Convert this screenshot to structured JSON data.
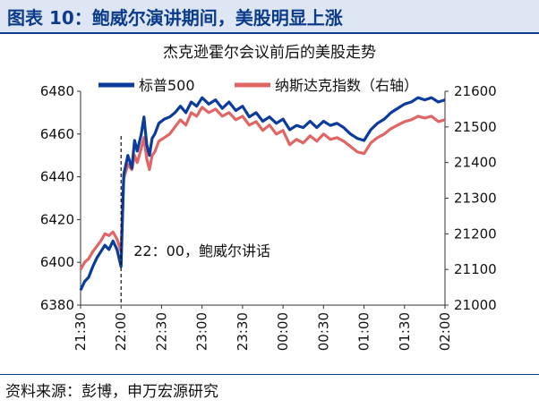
{
  "figure_title": "图表 10：鲍威尔演讲期间，美股明显上涨",
  "source_note": "资料来源：彭博，申万宏源研究",
  "chart_data": {
    "type": "line",
    "title": "杰克逊霍尔会议前后的美股走势",
    "annotation": "22：00，鲍威尔讲话",
    "annotation_x": "22:00",
    "x_ticks": [
      "21:30",
      "22:00",
      "22:30",
      "23:00",
      "23:30",
      "00:00",
      "00:30",
      "01:00",
      "01:30",
      "02:00"
    ],
    "y_left": {
      "min": 6380,
      "max": 6480,
      "ticks": [
        6380,
        6400,
        6420,
        6440,
        6460,
        6480
      ]
    },
    "y_right": {
      "min": 21000,
      "max": 21600,
      "ticks": [
        21000,
        21100,
        21200,
        21300,
        21400,
        21500,
        21600
      ]
    },
    "legend_position": "top",
    "series": [
      {
        "name": "标普500",
        "axis": "left",
        "color": "#0b3c9c",
        "points": [
          [
            "21:30",
            6387
          ],
          [
            "21:33",
            6391
          ],
          [
            "21:36",
            6393
          ],
          [
            "21:39",
            6398
          ],
          [
            "21:42",
            6402
          ],
          [
            "21:45",
            6405
          ],
          [
            "21:48",
            6408
          ],
          [
            "21:51",
            6406
          ],
          [
            "21:54",
            6410
          ],
          [
            "21:57",
            6406
          ],
          [
            "22:00",
            6398
          ],
          [
            "22:02",
            6441
          ],
          [
            "22:05",
            6450
          ],
          [
            "22:08",
            6444
          ],
          [
            "22:10",
            6457
          ],
          [
            "22:12",
            6452
          ],
          [
            "22:15",
            6460
          ],
          [
            "22:17",
            6468
          ],
          [
            "22:19",
            6455
          ],
          [
            "22:21",
            6450
          ],
          [
            "22:23",
            6458
          ],
          [
            "22:25",
            6460
          ],
          [
            "22:28",
            6465
          ],
          [
            "22:32",
            6467
          ],
          [
            "22:36",
            6468
          ],
          [
            "22:40",
            6470
          ],
          [
            "22:44",
            6473
          ],
          [
            "22:48",
            6470
          ],
          [
            "22:52",
            6475
          ],
          [
            "22:56",
            6473
          ],
          [
            "23:00",
            6477
          ],
          [
            "23:05",
            6474
          ],
          [
            "23:10",
            6476
          ],
          [
            "23:15",
            6472
          ],
          [
            "23:20",
            6475
          ],
          [
            "23:25",
            6471
          ],
          [
            "23:30",
            6473
          ],
          [
            "23:35",
            6468
          ],
          [
            "23:40",
            6470
          ],
          [
            "23:45",
            6466
          ],
          [
            "23:50",
            6468
          ],
          [
            "23:55",
            6465
          ],
          [
            "00:00",
            6467
          ],
          [
            "00:05",
            6462
          ],
          [
            "00:10",
            6464
          ],
          [
            "00:15",
            6463
          ],
          [
            "00:20",
            6466
          ],
          [
            "00:25",
            6463
          ],
          [
            "00:30",
            6466
          ],
          [
            "00:35",
            6464
          ],
          [
            "00:40",
            6465
          ],
          [
            "00:45",
            6463
          ],
          [
            "00:50",
            6460
          ],
          [
            "00:55",
            6458
          ],
          [
            "01:00",
            6457
          ],
          [
            "01:05",
            6462
          ],
          [
            "01:10",
            6465
          ],
          [
            "01:15",
            6467
          ],
          [
            "01:20",
            6470
          ],
          [
            "01:25",
            6472
          ],
          [
            "01:30",
            6474
          ],
          [
            "01:35",
            6475
          ],
          [
            "01:40",
            6477
          ],
          [
            "01:45",
            6476
          ],
          [
            "01:50",
            6477
          ],
          [
            "01:55",
            6475
          ],
          [
            "02:00",
            6476
          ]
        ]
      },
      {
        "name": "纳斯达克指数（右轴）",
        "axis": "right",
        "color": "#e06666",
        "points": [
          [
            "21:30",
            21100
          ],
          [
            "21:33",
            21120
          ],
          [
            "21:36",
            21130
          ],
          [
            "21:39",
            21150
          ],
          [
            "21:42",
            21165
          ],
          [
            "21:45",
            21180
          ],
          [
            "21:48",
            21200
          ],
          [
            "21:51",
            21195
          ],
          [
            "21:54",
            21205
          ],
          [
            "21:57",
            21185
          ],
          [
            "22:00",
            21150
          ],
          [
            "22:02",
            21355
          ],
          [
            "22:05",
            21395
          ],
          [
            "22:08",
            21380
          ],
          [
            "22:10",
            21420
          ],
          [
            "22:12",
            21400
          ],
          [
            "22:15",
            21440
          ],
          [
            "22:17",
            21470
          ],
          [
            "22:19",
            21410
          ],
          [
            "22:21",
            21380
          ],
          [
            "22:23",
            21420
          ],
          [
            "22:25",
            21430
          ],
          [
            "22:28",
            21460
          ],
          [
            "22:32",
            21470
          ],
          [
            "22:36",
            21480
          ],
          [
            "22:40",
            21500
          ],
          [
            "22:44",
            21520
          ],
          [
            "22:48",
            21505
          ],
          [
            "22:52",
            21540
          ],
          [
            "22:56",
            21530
          ],
          [
            "23:00",
            21555
          ],
          [
            "23:05",
            21540
          ],
          [
            "23:10",
            21550
          ],
          [
            "23:15",
            21530
          ],
          [
            "23:20",
            21540
          ],
          [
            "23:25",
            21520
          ],
          [
            "23:30",
            21530
          ],
          [
            "23:35",
            21505
          ],
          [
            "23:40",
            21515
          ],
          [
            "23:45",
            21490
          ],
          [
            "23:50",
            21505
          ],
          [
            "23:55",
            21480
          ],
          [
            "00:00",
            21490
          ],
          [
            "00:05",
            21450
          ],
          [
            "00:10",
            21465
          ],
          [
            "00:15",
            21455
          ],
          [
            "00:20",
            21475
          ],
          [
            "00:25",
            21460
          ],
          [
            "00:30",
            21480
          ],
          [
            "00:35",
            21465
          ],
          [
            "00:40",
            21470
          ],
          [
            "00:45",
            21460
          ],
          [
            "00:50",
            21445
          ],
          [
            "00:55",
            21430
          ],
          [
            "01:00",
            21425
          ],
          [
            "01:05",
            21455
          ],
          [
            "01:10",
            21470
          ],
          [
            "01:15",
            21480
          ],
          [
            "01:20",
            21495
          ],
          [
            "01:25",
            21505
          ],
          [
            "01:30",
            21515
          ],
          [
            "01:35",
            21520
          ],
          [
            "01:40",
            21530
          ],
          [
            "01:45",
            21525
          ],
          [
            "01:50",
            21530
          ],
          [
            "01:55",
            21515
          ],
          [
            "02:00",
            21520
          ]
        ]
      }
    ]
  }
}
